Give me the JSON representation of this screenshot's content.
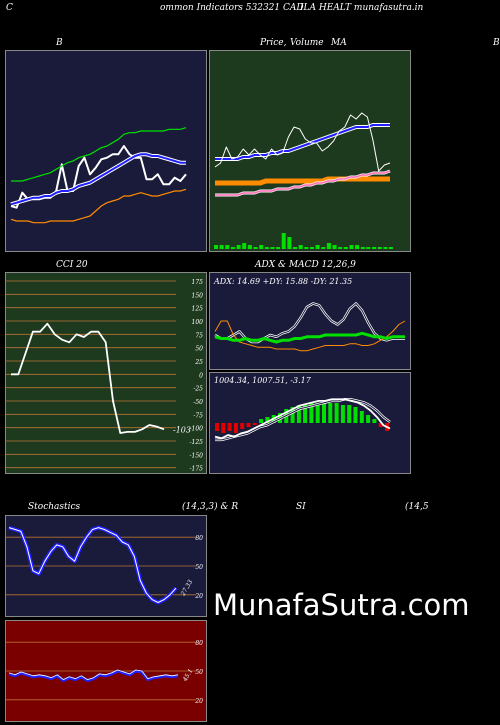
{
  "header": {
    "left": "C",
    "title": "ommon  Indicators 532321 CAD",
    "right": "ILA HEALT munafasutra.in"
  },
  "row1": {
    "b": "B",
    "price": "Price,",
    "vol": "Volume",
    "ma": "MA",
    "edge": "B"
  },
  "row2": {
    "cci": "CCI 20",
    "adx": "ADX  & MACD 12,26,9"
  },
  "row3": {
    "stoch": "Stochastics",
    "params": "(14,3,3) & R",
    "si": "SI",
    "si_params": "(14,5"
  },
  "watermark": "MunafaSutra.com",
  "colors": {
    "navy": "#1a1a3a",
    "green": "#1e3a1e",
    "darkred": "#7a0000",
    "blue": "#2020ff",
    "lime": "#00e000",
    "orange": "#ff8c00",
    "white": "#ffffff"
  },
  "chart_data": [
    {
      "type": "line",
      "title": "B",
      "series": [
        {
          "color": "#ffffff",
          "values": [
            137,
            136,
            145,
            141,
            141,
            141,
            142,
            142,
            146,
            162,
            146,
            146,
            161,
            166,
            156,
            160,
            165,
            166,
            168,
            168,
            173,
            168,
            166,
            166,
            153,
            153,
            156,
            150,
            150,
            154,
            152,
            156
          ]
        },
        {
          "color": "#2020ff",
          "values": [
            138,
            139,
            140,
            141,
            142,
            142,
            143,
            143,
            145,
            146,
            146,
            147,
            149,
            150,
            151,
            153,
            155,
            157,
            159,
            161,
            163,
            165,
            167,
            168,
            168,
            167,
            167,
            166,
            165,
            164,
            163,
            163
          ]
        },
        {
          "color": "#00e000",
          "values": [
            152,
            152,
            152,
            153,
            154,
            155,
            156,
            157,
            159,
            161,
            163,
            164,
            166,
            167,
            168,
            170,
            172,
            173,
            175,
            177,
            180,
            181,
            181,
            182,
            182,
            182,
            182,
            182,
            183,
            183,
            183,
            184
          ]
        },
        {
          "color": "#ff8c00",
          "values": [
            129,
            128,
            128,
            128,
            127,
            127,
            127,
            128,
            128,
            128,
            128,
            128,
            129,
            130,
            131,
            134,
            137,
            139,
            140,
            141,
            143,
            143,
            144,
            145,
            144,
            143,
            143,
            144,
            145,
            146,
            146,
            147
          ]
        }
      ]
    },
    {
      "type": "line",
      "title": "Price,  Volume  MA",
      "series": [
        {
          "color": "#ffffff",
          "values": [
            12,
            14,
            22,
            16,
            17,
            21,
            18,
            21,
            18,
            16,
            21,
            18,
            19,
            27,
            32,
            31,
            26,
            24,
            24,
            20,
            22,
            25,
            30,
            32,
            38,
            36,
            39,
            37,
            25,
            10,
            13,
            14
          ]
        },
        {
          "color": "#2020ff",
          "values": [
            16,
            16,
            16,
            16,
            16,
            17,
            17,
            18,
            18,
            18,
            19,
            19,
            20,
            20,
            21,
            22,
            23,
            24,
            25,
            26,
            27,
            28,
            29,
            30,
            31,
            32,
            32,
            32,
            33,
            33,
            33,
            33
          ]
        },
        {
          "color": "#ff8c00",
          "values": [
            4,
            4,
            4,
            4,
            4,
            4,
            4,
            4,
            4,
            5,
            5,
            5,
            5,
            5,
            5,
            5,
            5,
            5,
            5,
            5,
            6,
            6,
            6,
            6,
            6,
            6,
            6,
            6,
            6,
            6,
            6,
            6
          ]
        },
        {
          "color": "#ff69b4",
          "values": [
            -2,
            -2,
            -2,
            -2,
            -2,
            -1,
            -1,
            -1,
            0,
            0,
            0,
            1,
            1,
            1,
            2,
            2,
            3,
            3,
            4,
            4,
            5,
            5,
            6,
            6,
            7,
            7,
            8,
            8,
            9,
            9,
            9,
            10
          ]
        }
      ],
      "volume": [
        2,
        2,
        2,
        1,
        2,
        3,
        2,
        1,
        2,
        1,
        1,
        1,
        8,
        6,
        1,
        2,
        1,
        1,
        2,
        1,
        3,
        2,
        1,
        1,
        2,
        2,
        1,
        1,
        1,
        1,
        1,
        1
      ]
    },
    {
      "type": "line",
      "title": "CCI 20",
      "yticks": [
        175,
        150,
        125,
        100,
        75,
        50,
        25,
        0,
        -25,
        -50,
        -75,
        -100,
        -125,
        -150,
        -175
      ],
      "ylim": [
        -185,
        190
      ],
      "values": [
        0,
        0,
        40,
        80,
        80,
        95,
        75,
        65,
        60,
        75,
        70,
        80,
        80,
        60,
        -50,
        -110,
        -108,
        -108,
        -103,
        -95,
        -98,
        -103
      ],
      "last_label": "-103"
    },
    {
      "type": "line",
      "title": "ADX  & MACD 12,26,9",
      "adx_label": "ADX: 14.69  +DY: 15.88  -DY: 21.35",
      "macd_label": "1004.34,  1007.51,  -3.17",
      "series": [
        {
          "color": "#00e000",
          "values": [
            15,
            14,
            14,
            13,
            13,
            14,
            13,
            13,
            14,
            13,
            12,
            13,
            13,
            14,
            14,
            15,
            15,
            15,
            16,
            16,
            16,
            16,
            16,
            16,
            17,
            16,
            15,
            15,
            14,
            15,
            15,
            15
          ]
        },
        {
          "color": "#ff8c00",
          "values": [
            18,
            24,
            24,
            16,
            12,
            11,
            10,
            9,
            9,
            9,
            8,
            8,
            8,
            8,
            7,
            7,
            8,
            9,
            10,
            10,
            10,
            10,
            11,
            11,
            10,
            10,
            11,
            13,
            15,
            18,
            22,
            24
          ]
        },
        {
          "color": "#ffffff",
          "values": [
            16,
            14,
            14,
            16,
            18,
            14,
            12,
            12,
            14,
            16,
            15,
            17,
            18,
            21,
            26,
            32,
            34,
            33,
            28,
            24,
            22,
            25,
            31,
            34,
            30,
            23,
            17,
            14,
            13,
            14,
            14,
            14
          ]
        }
      ],
      "macd": [
        -8,
        -9,
        -7,
        -8,
        -6,
        -5,
        -3,
        -1,
        1,
        3,
        5,
        7,
        9,
        11,
        12,
        13,
        14,
        14,
        15,
        15,
        15,
        14,
        13,
        11,
        8,
        4,
        -1,
        -3
      ],
      "signal": [
        -10,
        -10,
        -9,
        -8,
        -7,
        -6,
        -4,
        -2,
        -1,
        1,
        3,
        5,
        7,
        9,
        10,
        11,
        12,
        13,
        14,
        14,
        15,
        15,
        14,
        13,
        11,
        8,
        4,
        1
      ],
      "hist": [
        -4,
        -5,
        -4,
        -5,
        -3,
        -2,
        -1,
        2,
        3,
        4,
        5,
        7,
        8,
        9,
        9,
        10,
        10,
        10,
        10,
        10,
        9,
        9,
        8,
        6,
        4,
        2,
        -2,
        -4
      ]
    },
    {
      "type": "line",
      "title": "Stochastics",
      "yticks": [
        80,
        50,
        20
      ],
      "values": [
        90,
        88,
        86,
        70,
        45,
        42,
        55,
        65,
        72,
        70,
        60,
        55,
        70,
        80,
        88,
        90,
        88,
        85,
        82,
        75,
        72,
        60,
        35,
        22,
        15,
        12,
        15,
        20,
        27
      ],
      "last_label": "27.33"
    },
    {
      "type": "line",
      "title": "SI",
      "yticks": [
        80,
        50,
        20
      ],
      "values": [
        47,
        45,
        48,
        46,
        44,
        45,
        44,
        42,
        45,
        40,
        43,
        41,
        44,
        40,
        42,
        46,
        45,
        47,
        50,
        48,
        46,
        50,
        49,
        41,
        43,
        44,
        45,
        44,
        45
      ],
      "last_label": "45.1"
    }
  ]
}
